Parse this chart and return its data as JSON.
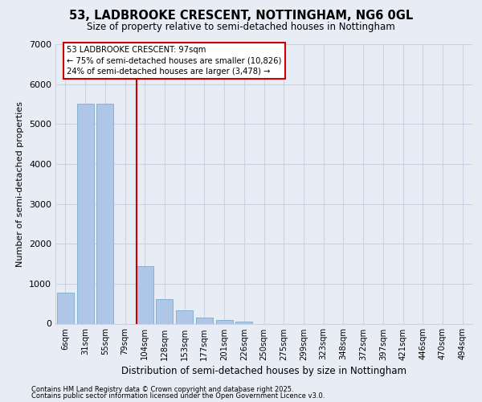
{
  "title_line1": "53, LADBROOKE CRESCENT, NOTTINGHAM, NG6 0GL",
  "title_line2": "Size of property relative to semi-detached houses in Nottingham",
  "xlabel": "Distribution of semi-detached houses by size in Nottingham",
  "ylabel": "Number of semi-detached properties",
  "categories": [
    "6sqm",
    "31sqm",
    "55sqm",
    "79sqm",
    "104sqm",
    "128sqm",
    "153sqm",
    "177sqm",
    "201sqm",
    "226sqm",
    "250sqm",
    "275sqm",
    "299sqm",
    "323sqm",
    "348sqm",
    "372sqm",
    "397sqm",
    "421sqm",
    "446sqm",
    "470sqm",
    "494sqm"
  ],
  "values": [
    780,
    5500,
    5500,
    0,
    1450,
    620,
    330,
    160,
    90,
    50,
    0,
    0,
    0,
    0,
    0,
    0,
    0,
    0,
    0,
    0,
    0
  ],
  "bar_color": "#aec6e8",
  "bar_edge_color": "#7aaccc",
  "property_line_x": 4.0,
  "annotation_text_line1": "53 LADBROOKE CRESCENT: 97sqm",
  "annotation_text_line2": "← 75% of semi-detached houses are smaller (10,826)",
  "annotation_text_line3": "24% of semi-detached houses are larger (3,478) →",
  "annotation_box_facecolor": "#ffffff",
  "annotation_box_edgecolor": "#cc0000",
  "vline_color": "#cc0000",
  "grid_color": "#c8d4e4",
  "background_color": "#e8edf5",
  "ylim": [
    0,
    7000
  ],
  "yticks": [
    0,
    1000,
    2000,
    3000,
    4000,
    5000,
    6000,
    7000
  ],
  "footer_line1": "Contains HM Land Registry data © Crown copyright and database right 2025.",
  "footer_line2": "Contains public sector information licensed under the Open Government Licence v3.0."
}
